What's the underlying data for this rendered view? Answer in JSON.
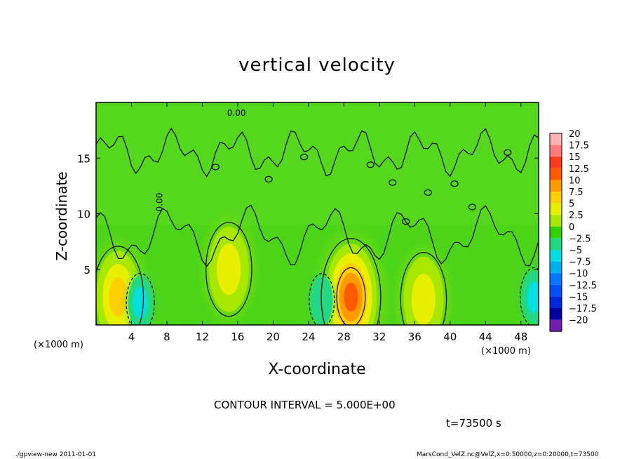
{
  "chart_data": {
    "type": "heatmap",
    "title": "vertical velocity",
    "xlabel": "X-coordinate",
    "ylabel": "Z-coordinate",
    "x_unit_label": "(×1000 m)",
    "y_unit_label": "(×1000 m)",
    "x_ticks": [
      4,
      8,
      12,
      16,
      20,
      24,
      28,
      32,
      36,
      40,
      44,
      48
    ],
    "y_ticks": [
      5,
      10,
      15
    ],
    "xlim": [
      0,
      50
    ],
    "ylim": [
      0,
      20
    ],
    "contour_interval_text": "CONTOUR INTERVAL = 5.000E+00",
    "contour_label": "0.00",
    "colorbar": {
      "levels": [
        "20",
        "17.5",
        "15",
        "12.5",
        "10",
        "7.5",
        "5",
        "2.5",
        "0",
        "−2.5",
        "−5",
        "−7.5",
        "−10",
        "−12.5",
        "−15",
        "−17.5",
        "−20"
      ],
      "colors": [
        "#ffb3b3",
        "#ff7a7a",
        "#ff3a1a",
        "#ff5a00",
        "#ff9a00",
        "#ffd000",
        "#e8f000",
        "#a8e800",
        "#32d200",
        "#22d882",
        "#00e0e0",
        "#00b0f0",
        "#0078ff",
        "#0050ff",
        "#0028e0",
        "#0000a0",
        "#7020b0"
      ]
    },
    "features": [
      {
        "kind": "updraft",
        "x": 2.5,
        "z": 2.5,
        "peak": 7.5
      },
      {
        "kind": "updraft",
        "x": 15.0,
        "z": 5.0,
        "peak": 5.0
      },
      {
        "kind": "updraft",
        "x": 28.8,
        "z": 2.5,
        "peak": 12.5
      },
      {
        "kind": "updraft",
        "x": 37.0,
        "z": 2.3,
        "peak": 5.0
      },
      {
        "kind": "downdraft",
        "x": 5.0,
        "z": 2.0,
        "peak": -5.0
      },
      {
        "kind": "downdraft",
        "x": 25.5,
        "z": 2.2,
        "peak": -2.5
      },
      {
        "kind": "downdraft",
        "x": 49.5,
        "z": 2.5,
        "peak": -5.0
      }
    ]
  },
  "time_text": "t=73500 s",
  "footer_left": "./gpview-new   2011-01-01",
  "footer_right": "MarsCond_VelZ.nc@VelZ,x=0:50000,z=0:20000,t=73500"
}
